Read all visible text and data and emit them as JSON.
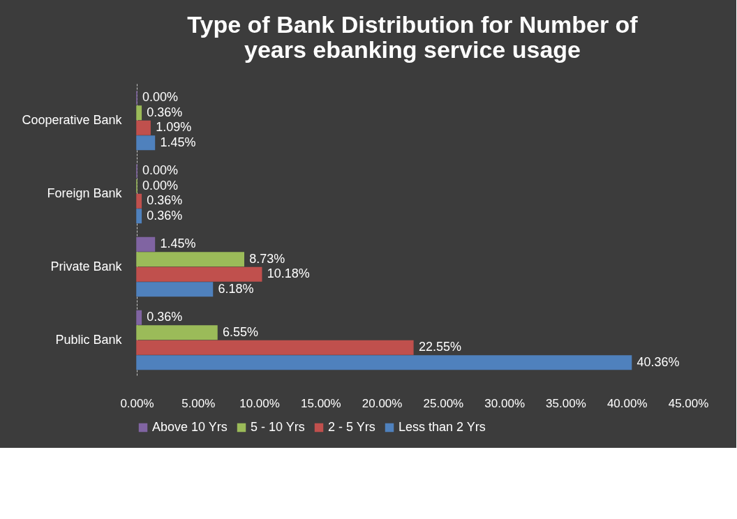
{
  "chart_data": {
    "type": "bar",
    "orientation": "horizontal",
    "title": "Type of Bank Distribution for Number of years ebanking service usage",
    "categories": [
      "Cooperative Bank",
      "Foreign Bank",
      "Private Bank",
      "Public Bank"
    ],
    "series": [
      {
        "name": "Above 10 Yrs",
        "color": "#8064a2",
        "values": [
          0,
          0,
          1.45,
          0.36
        ],
        "value_labels": [
          "0.00%",
          "0.00%",
          "1.45%",
          "0.36%"
        ]
      },
      {
        "name": "5 - 10 Yrs",
        "color": "#9bbb59",
        "values": [
          0.36,
          0,
          8.73,
          6.55
        ],
        "value_labels": [
          "0.36%",
          "0.00%",
          "8.73%",
          "6.55%"
        ]
      },
      {
        "name": "2 - 5 Yrs",
        "color": "#c0504d",
        "values": [
          1.09,
          0.36,
          10.18,
          22.55
        ],
        "value_labels": [
          "1.09%",
          "0.36%",
          "10.18%",
          "22.55%"
        ]
      },
      {
        "name": "Less than 2 Yrs",
        "color": "#4f81bd",
        "values": [
          1.45,
          0.36,
          6.18,
          40.36
        ],
        "value_labels": [
          "1.45%",
          "0.36%",
          "6.18%",
          "40.36%"
        ]
      }
    ],
    "xlim": [
      0,
      45
    ],
    "xticks": [
      {
        "value": 0,
        "label": "0.00%"
      },
      {
        "value": 5,
        "label": "5.00%"
      },
      {
        "value": 10,
        "label": "10.00%"
      },
      {
        "value": 15,
        "label": "15.00%"
      },
      {
        "value": 20,
        "label": "20.00%"
      },
      {
        "value": 25,
        "label": "25.00%"
      },
      {
        "value": 30,
        "label": "30.00%"
      },
      {
        "value": 35,
        "label": "35.00%"
      },
      {
        "value": 40,
        "label": "40.00%"
      },
      {
        "value": 45,
        "label": "45.00%"
      }
    ],
    "legend": "bottom"
  }
}
